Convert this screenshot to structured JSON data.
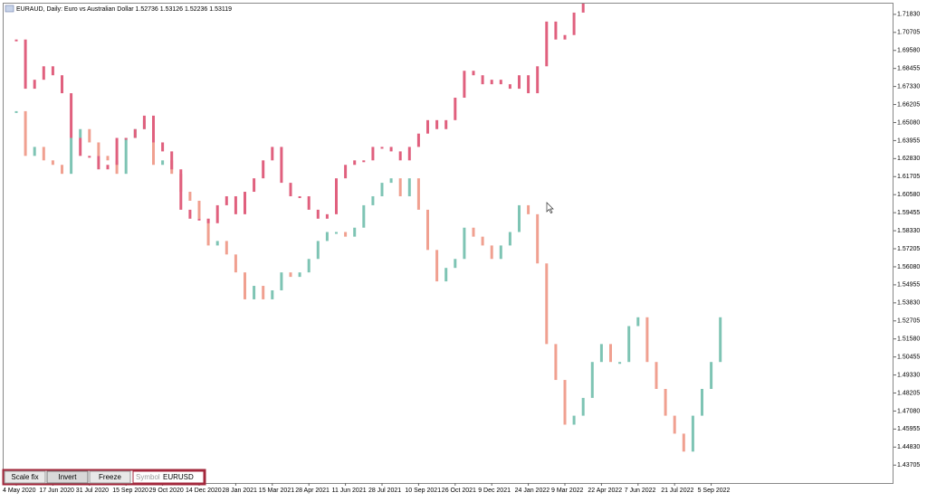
{
  "header": {
    "title": "EURAUD, Daily:  Euro vs Australian Dollar  1.52736 1.53126 1.52236 1.53119"
  },
  "toolbar": {
    "buttons": [
      "Scale fix",
      "Invert",
      "Freeze"
    ],
    "symbol_label": "Symbol",
    "symbol_value": "EURUSD"
  },
  "chart_data": {
    "type": "candle-line",
    "categories": [
      "4 May 2020",
      null,
      null,
      null,
      "17 Jun 2020",
      null,
      null,
      null,
      "31 Jul 2020",
      null,
      null,
      null,
      "15 Sep 2020",
      null,
      null,
      null,
      "29 Oct 2020",
      null,
      null,
      null,
      "14 Dec 2020",
      null,
      null,
      null,
      "28 Jan 2021",
      null,
      null,
      null,
      "15 Mar 2021",
      null,
      null,
      null,
      "28 Apr 2021",
      null,
      null,
      null,
      "11 Jun 2021",
      null,
      null,
      null,
      "28 Jul 2021",
      null,
      null,
      null,
      "10 Sep 2021",
      null,
      null,
      null,
      "26 Oct 2021",
      null,
      null,
      null,
      "9 Dec 2021",
      null,
      null,
      null,
      "24 Jan 2022",
      null,
      null,
      null,
      "9 Mar 2022",
      null,
      null,
      null,
      "22 Apr 2022",
      null,
      null,
      null,
      "7 Jun 2022",
      null,
      null,
      null,
      "21 Jul 2022",
      null,
      null,
      null,
      "5 Sep 2022",
      null
    ],
    "series": [
      {
        "name": "EURAUD",
        "color": "#7ec4b4",
        "down_color": "#f0a090",
        "values": [
          1.6579,
          1.63,
          1.6356,
          1.6272,
          1.6244,
          1.6188,
          1.6412,
          1.6467,
          1.6384,
          1.63,
          1.6272,
          1.6188,
          1.6412,
          1.6467,
          1.6523,
          1.6244,
          1.6272,
          1.6188,
          1.6076,
          1.602,
          1.5908,
          1.5741,
          1.5769,
          1.5685,
          1.5573,
          1.5405,
          1.5489,
          1.5405,
          1.5461,
          1.5573,
          1.5545,
          1.5573,
          1.5657,
          1.5769,
          1.5825,
          1.5825,
          1.5796,
          1.5852,
          1.5992,
          1.6048,
          1.6132,
          1.616,
          1.6048,
          1.616,
          1.5964,
          1.5713,
          1.5517,
          1.5601,
          1.5657,
          1.5852,
          1.5796,
          1.5741,
          1.5657,
          1.5741,
          1.5825,
          1.5992,
          1.5936,
          1.5629,
          1.5126,
          1.4902,
          1.4623,
          1.4679,
          1.479,
          1.5014,
          1.5126,
          1.5014,
          1.5014,
          1.5238,
          1.5293,
          1.5014,
          1.4846,
          1.4679,
          1.4567,
          1.4455,
          1.4679,
          1.4846,
          1.5014,
          1.5293
        ]
      },
      {
        "name": "EURUSD",
        "color": "#e0607e",
        "down_color": "#e0607e",
        "values": [
          1.7026,
          1.6719,
          1.6775,
          1.6859,
          1.6803,
          1.6691,
          1.6412,
          1.63,
          1.63,
          1.6216,
          1.6244,
          1.6412,
          1.6412,
          1.6467,
          1.6551,
          1.6384,
          1.6328,
          1.6216,
          1.5964,
          1.5908,
          1.5908,
          1.588,
          1.5992,
          1.6048,
          1.5936,
          1.6076,
          1.616,
          1.6272,
          1.6356,
          1.6132,
          1.6048,
          1.6048,
          1.5964,
          1.5908,
          1.5936,
          1.616,
          1.6244,
          1.6272,
          1.6272,
          1.6356,
          1.6356,
          1.6328,
          1.6272,
          1.6356,
          1.6439,
          1.6523,
          1.6467,
          1.6523,
          1.6663,
          1.6831,
          1.6803,
          1.6747,
          1.6775,
          1.6747,
          1.6719,
          1.6803,
          1.6691,
          1.6859,
          1.7138,
          1.7026,
          1.7054,
          1.7194,
          1.725,
          null,
          null,
          null,
          null,
          null,
          null,
          null,
          null,
          null,
          null,
          null,
          null,
          null,
          null,
          null
        ]
      }
    ],
    "ylim": [
      1.4259,
      1.725
    ],
    "yticks": [
      {
        "value": 1.7183,
        "label": "1.71830"
      },
      1.70705,
      {
        "value": 1.6958,
        "label": "1.69580"
      },
      1.68455,
      {
        "value": 1.6733,
        "label": "1.67330"
      },
      1.66205,
      {
        "value": 1.6508,
        "label": "1.65080"
      },
      1.63955,
      {
        "value": 1.6283,
        "label": "1.62830"
      },
      1.61705,
      {
        "value": 1.6058,
        "label": "1.60580"
      },
      1.59455,
      {
        "value": 1.5833,
        "label": "1.58330"
      },
      1.57205,
      {
        "value": 1.5608,
        "label": "1.56080"
      },
      1.54955,
      {
        "value": 1.5383,
        "label": "1.53830"
      },
      1.52705,
      {
        "value": 1.5158,
        "label": "1.51580"
      },
      1.50455,
      {
        "value": 1.4933,
        "label": "1.49330"
      },
      1.48205,
      {
        "value": 1.4708,
        "label": "1.47080"
      },
      1.45955,
      {
        "value": 1.4483,
        "label": "1.44830"
      },
      1.43705
    ],
    "grid": false
  }
}
